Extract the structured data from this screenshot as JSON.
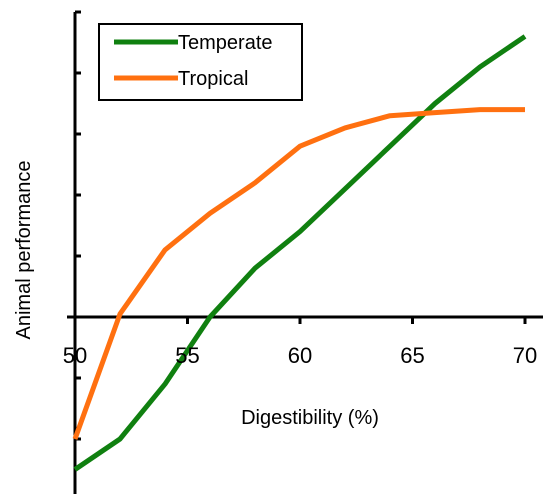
{
  "chart_data": {
    "type": "line",
    "xlabel": "Digestibility (%)",
    "ylabel": "Animal performance",
    "xlim": [
      50,
      70
    ],
    "ylim": [
      -2.5,
      5
    ],
    "x_ticks": [
      "50",
      "55",
      "60",
      "65",
      "70"
    ],
    "y_ticks": [
      -2,
      -1,
      1,
      2,
      3,
      4,
      5
    ],
    "grid": false,
    "legend_position": "top-left",
    "series": [
      {
        "name": "Temperate",
        "color": "#108010",
        "x": [
          50,
          52,
          54,
          56,
          58,
          60,
          62,
          64,
          66,
          68,
          70
        ],
        "y": [
          -2.5,
          -2.0,
          -1.1,
          0.0,
          0.8,
          1.4,
          2.1,
          2.8,
          3.5,
          4.1,
          4.6
        ]
      },
      {
        "name": "Tropical",
        "color": "#ff7010",
        "x": [
          50,
          52,
          54,
          56,
          58,
          60,
          62,
          64,
          66,
          68,
          70
        ],
        "y": [
          -2.0,
          0.05,
          1.1,
          1.7,
          2.2,
          2.8,
          3.1,
          3.3,
          3.35,
          3.4,
          3.4
        ]
      }
    ]
  }
}
